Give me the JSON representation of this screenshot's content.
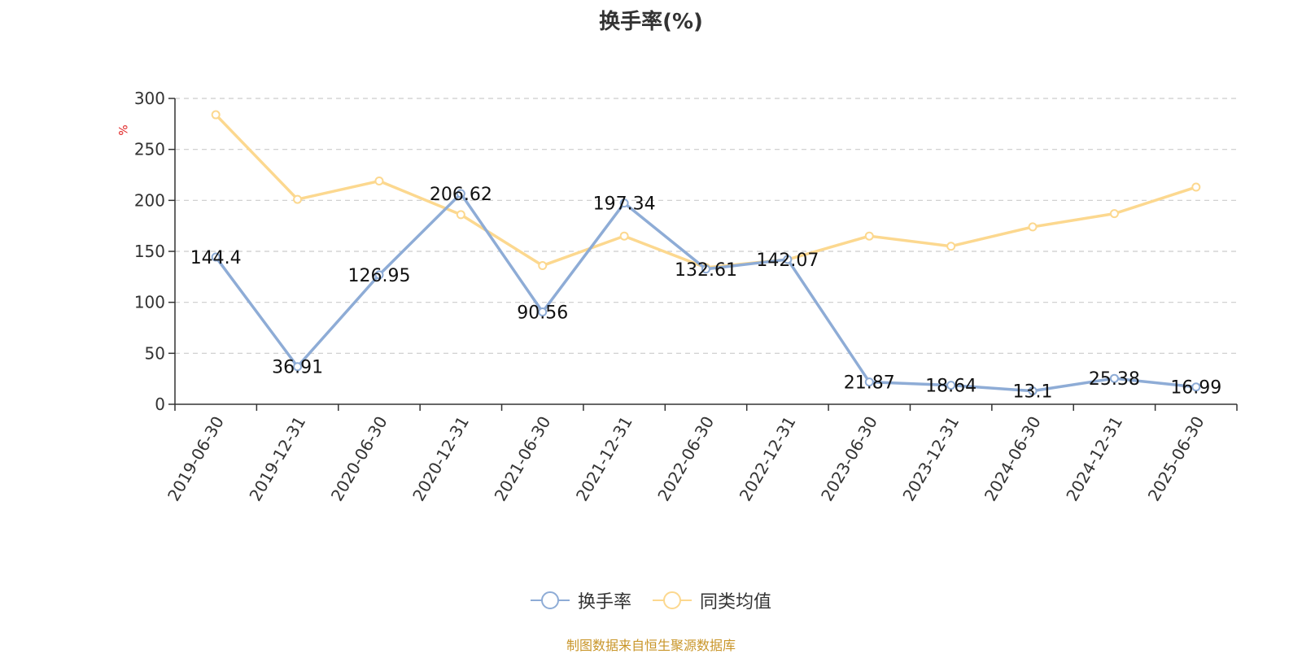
{
  "title": "换手率(%)",
  "source_text": "制图数据来自恒生聚源数据库",
  "chart_data": {
    "type": "line",
    "title": "换手率(%)",
    "ylabel": "%",
    "ylim": [
      0,
      300
    ],
    "yticks": [
      0,
      50,
      100,
      150,
      200,
      250,
      300
    ],
    "grid": true,
    "legend_position": "bottom",
    "categories": [
      "2019-06-30",
      "2019-12-31",
      "2020-06-30",
      "2020-12-31",
      "2021-06-30",
      "2021-12-31",
      "2022-06-30",
      "2022-12-31",
      "2023-06-30",
      "2023-12-31",
      "2024-06-30",
      "2024-12-31",
      "2025-06-30"
    ],
    "series": [
      {
        "name": "换手率",
        "color": "#8eacd6",
        "values": [
          144.4,
          36.91,
          126.95,
          206.62,
          90.56,
          197.34,
          132.61,
          142.07,
          21.87,
          18.64,
          13.1,
          25.38,
          16.99
        ],
        "labels": [
          "144.4",
          "36.91",
          "126.95",
          "206.62",
          "90.56",
          "197.34",
          "132.61",
          "142.07",
          "21.87",
          "18.64",
          "13.1",
          "25.38",
          "16.99"
        ]
      },
      {
        "name": "同类均值",
        "color": "#fcd88f",
        "values": [
          284,
          201,
          219,
          186,
          136,
          165,
          134,
          142,
          165,
          155,
          174,
          187,
          213
        ]
      }
    ]
  }
}
